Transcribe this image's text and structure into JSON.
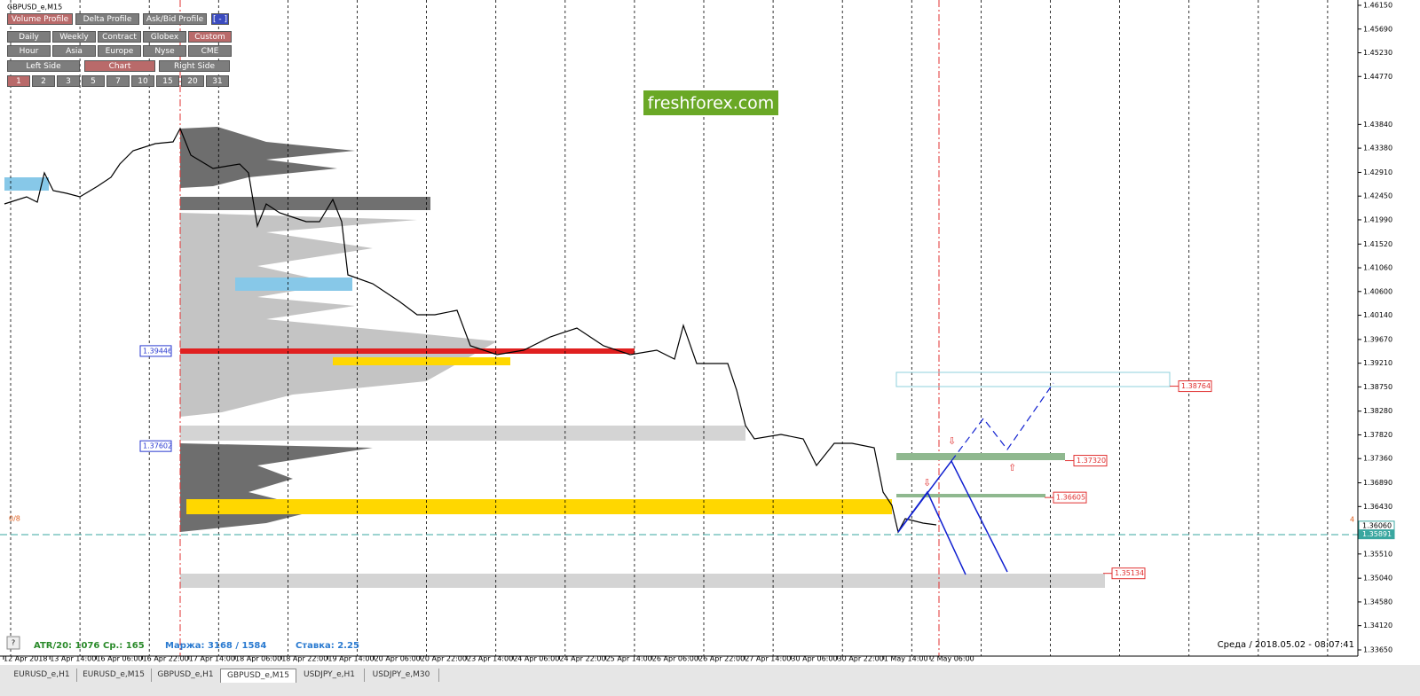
{
  "window": {
    "symbol": "GBPUSD_e,M15"
  },
  "toolbar": {
    "row1": [
      "Volume Profile",
      "Delta Profile",
      "Ask/Bid Profile",
      "[ - ]"
    ],
    "row2": [
      "Daily",
      "Weekly",
      "Contract",
      "Globex",
      "Custom"
    ],
    "row3": [
      "Hour",
      "Asia",
      "Europe",
      "Nyse",
      "CME"
    ],
    "row4": [
      "Left Side",
      "Chart",
      "Right Side"
    ],
    "row5": [
      "1",
      "2",
      "3",
      "5",
      "7",
      "10",
      "15",
      "20",
      "31"
    ]
  },
  "watermark": "freshforex.com",
  "price_axis": [
    "1.46150",
    "1.45690",
    "1.45230",
    "1.44770",
    "1.43840",
    "1.43380",
    "1.42910",
    "1.42450",
    "1.41990",
    "1.41520",
    "1.41060",
    "1.40600",
    "1.40140",
    "1.39670",
    "1.39210",
    "1.38750",
    "1.38280",
    "1.37820",
    "1.37360",
    "1.36890",
    "1.36430",
    "1.35510",
    "1.35040",
    "1.34580",
    "1.34120",
    "1.33650"
  ],
  "current_price": "1.36060",
  "bid_line": "1.35891",
  "levels": {
    "left": [
      "1.39446",
      "1.37602"
    ],
    "right": [
      "1.38764",
      "1.37320",
      "1.36605",
      "1.35134"
    ]
  },
  "markers": {
    "left": "0/8",
    "right": "4"
  },
  "status": {
    "atr": "ATR/20: 1076",
    "avg": "Ср.: 165",
    "margin": "Маржа: 3168 / 1584",
    "rate": "Ставка: 2.25",
    "clock": "Среда / 2018.05.02 - 08:07:41",
    "help": "?"
  },
  "time_axis": [
    "12 Apr 2018",
    "13 Apr 14:00",
    "16 Apr 06:00",
    "16 Apr 22:00",
    "17 Apr 14:00",
    "18 Apr 06:00",
    "18 Apr 22:00",
    "19 Apr 14:00",
    "20 Apr 06:00",
    "20 Apr 22:00",
    "23 Apr 14:00",
    "24 Apr 06:00",
    "24 Apr 22:00",
    "25 Apr 14:00",
    "26 Apr 06:00",
    "26 Apr 22:00",
    "27 Apr 14:00",
    "30 Apr 06:00",
    "30 Apr 22:00",
    "1 May 14:00",
    "2 May 06:00"
  ],
  "tabs": [
    "EURUSD_e,H1",
    "EURUSD_e,M15",
    "GBPUSD_e,H1",
    "GBPUSD_e,M15",
    "USDJPY_e,H1",
    "USDJPY_e,M30"
  ],
  "active_tab": 3
}
